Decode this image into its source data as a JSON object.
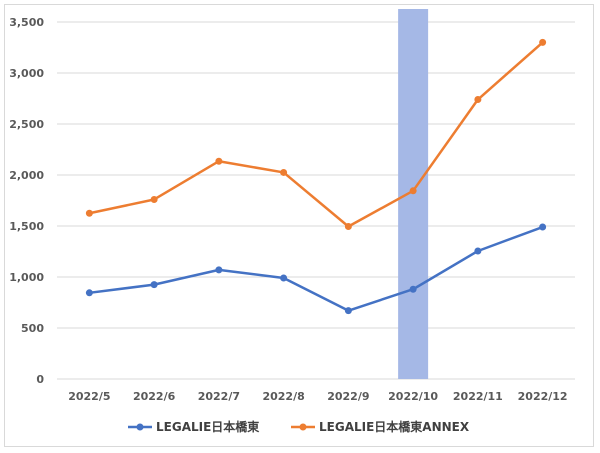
{
  "chart_data": {
    "type": "line",
    "title": "",
    "xlabel": "",
    "ylabel": "",
    "categories": [
      "2022/5",
      "2022/6",
      "2022/7",
      "2022/8",
      "2022/9",
      "2022/10",
      "2022/11",
      "2022/12"
    ],
    "ylim": [
      0,
      3500
    ],
    "yticks": [
      0,
      500,
      1000,
      1500,
      2000,
      2500,
      3000,
      3500
    ],
    "ytick_labels": [
      "0",
      "500",
      "1,000",
      "1,500",
      "2,000",
      "2,500",
      "3,000",
      "3,500"
    ],
    "grid": true,
    "legend": "bottom",
    "highlight": {
      "category": "2022/10",
      "color": "#a5b8e6"
    },
    "series": [
      {
        "name": "LEGALIE日本橋東",
        "color": "#4472c4",
        "values": [
          845,
          925,
          1070,
          990,
          670,
          880,
          1255,
          1490
        ]
      },
      {
        "name": "LEGALIE日本橋東ANNEX",
        "color": "#ed7d31",
        "values": [
          1625,
          1760,
          2135,
          2025,
          1495,
          1845,
          2740,
          3300
        ]
      }
    ]
  }
}
